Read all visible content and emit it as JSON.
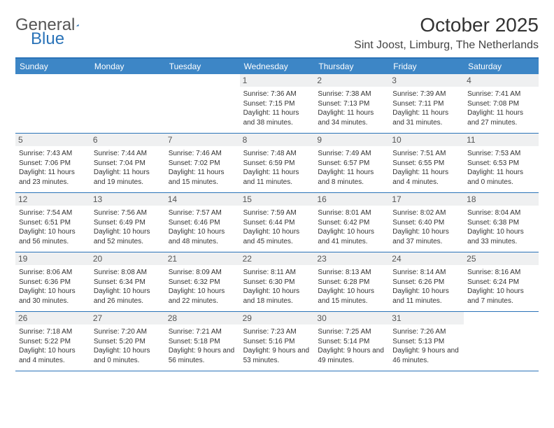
{
  "logo": {
    "text1": "General",
    "text2": "Blue"
  },
  "title": "October 2025",
  "location": "Sint Joost, Limburg, The Netherlands",
  "colors": {
    "header_bg": "#3d86c6",
    "border": "#2a73b8",
    "daynum_bg": "#eff0f1",
    "page_bg": "#ffffff"
  },
  "day_labels": [
    "Sunday",
    "Monday",
    "Tuesday",
    "Wednesday",
    "Thursday",
    "Friday",
    "Saturday"
  ],
  "weeks": [
    [
      null,
      null,
      null,
      {
        "n": "1",
        "sr": "7:36 AM",
        "ss": "7:15 PM",
        "dl": "11 hours and 38 minutes."
      },
      {
        "n": "2",
        "sr": "7:38 AM",
        "ss": "7:13 PM",
        "dl": "11 hours and 34 minutes."
      },
      {
        "n": "3",
        "sr": "7:39 AM",
        "ss": "7:11 PM",
        "dl": "11 hours and 31 minutes."
      },
      {
        "n": "4",
        "sr": "7:41 AM",
        "ss": "7:08 PM",
        "dl": "11 hours and 27 minutes."
      }
    ],
    [
      {
        "n": "5",
        "sr": "7:43 AM",
        "ss": "7:06 PM",
        "dl": "11 hours and 23 minutes."
      },
      {
        "n": "6",
        "sr": "7:44 AM",
        "ss": "7:04 PM",
        "dl": "11 hours and 19 minutes."
      },
      {
        "n": "7",
        "sr": "7:46 AM",
        "ss": "7:02 PM",
        "dl": "11 hours and 15 minutes."
      },
      {
        "n": "8",
        "sr": "7:48 AM",
        "ss": "6:59 PM",
        "dl": "11 hours and 11 minutes."
      },
      {
        "n": "9",
        "sr": "7:49 AM",
        "ss": "6:57 PM",
        "dl": "11 hours and 8 minutes."
      },
      {
        "n": "10",
        "sr": "7:51 AM",
        "ss": "6:55 PM",
        "dl": "11 hours and 4 minutes."
      },
      {
        "n": "11",
        "sr": "7:53 AM",
        "ss": "6:53 PM",
        "dl": "11 hours and 0 minutes."
      }
    ],
    [
      {
        "n": "12",
        "sr": "7:54 AM",
        "ss": "6:51 PM",
        "dl": "10 hours and 56 minutes."
      },
      {
        "n": "13",
        "sr": "7:56 AM",
        "ss": "6:49 PM",
        "dl": "10 hours and 52 minutes."
      },
      {
        "n": "14",
        "sr": "7:57 AM",
        "ss": "6:46 PM",
        "dl": "10 hours and 48 minutes."
      },
      {
        "n": "15",
        "sr": "7:59 AM",
        "ss": "6:44 PM",
        "dl": "10 hours and 45 minutes."
      },
      {
        "n": "16",
        "sr": "8:01 AM",
        "ss": "6:42 PM",
        "dl": "10 hours and 41 minutes."
      },
      {
        "n": "17",
        "sr": "8:02 AM",
        "ss": "6:40 PM",
        "dl": "10 hours and 37 minutes."
      },
      {
        "n": "18",
        "sr": "8:04 AM",
        "ss": "6:38 PM",
        "dl": "10 hours and 33 minutes."
      }
    ],
    [
      {
        "n": "19",
        "sr": "8:06 AM",
        "ss": "6:36 PM",
        "dl": "10 hours and 30 minutes."
      },
      {
        "n": "20",
        "sr": "8:08 AM",
        "ss": "6:34 PM",
        "dl": "10 hours and 26 minutes."
      },
      {
        "n": "21",
        "sr": "8:09 AM",
        "ss": "6:32 PM",
        "dl": "10 hours and 22 minutes."
      },
      {
        "n": "22",
        "sr": "8:11 AM",
        "ss": "6:30 PM",
        "dl": "10 hours and 18 minutes."
      },
      {
        "n": "23",
        "sr": "8:13 AM",
        "ss": "6:28 PM",
        "dl": "10 hours and 15 minutes."
      },
      {
        "n": "24",
        "sr": "8:14 AM",
        "ss": "6:26 PM",
        "dl": "10 hours and 11 minutes."
      },
      {
        "n": "25",
        "sr": "8:16 AM",
        "ss": "6:24 PM",
        "dl": "10 hours and 7 minutes."
      }
    ],
    [
      {
        "n": "26",
        "sr": "7:18 AM",
        "ss": "5:22 PM",
        "dl": "10 hours and 4 minutes."
      },
      {
        "n": "27",
        "sr": "7:20 AM",
        "ss": "5:20 PM",
        "dl": "10 hours and 0 minutes."
      },
      {
        "n": "28",
        "sr": "7:21 AM",
        "ss": "5:18 PM",
        "dl": "9 hours and 56 minutes."
      },
      {
        "n": "29",
        "sr": "7:23 AM",
        "ss": "5:16 PM",
        "dl": "9 hours and 53 minutes."
      },
      {
        "n": "30",
        "sr": "7:25 AM",
        "ss": "5:14 PM",
        "dl": "9 hours and 49 minutes."
      },
      {
        "n": "31",
        "sr": "7:26 AM",
        "ss": "5:13 PM",
        "dl": "9 hours and 46 minutes."
      },
      null
    ]
  ],
  "labels": {
    "sunrise": "Sunrise:",
    "sunset": "Sunset:",
    "daylight": "Daylight:"
  }
}
